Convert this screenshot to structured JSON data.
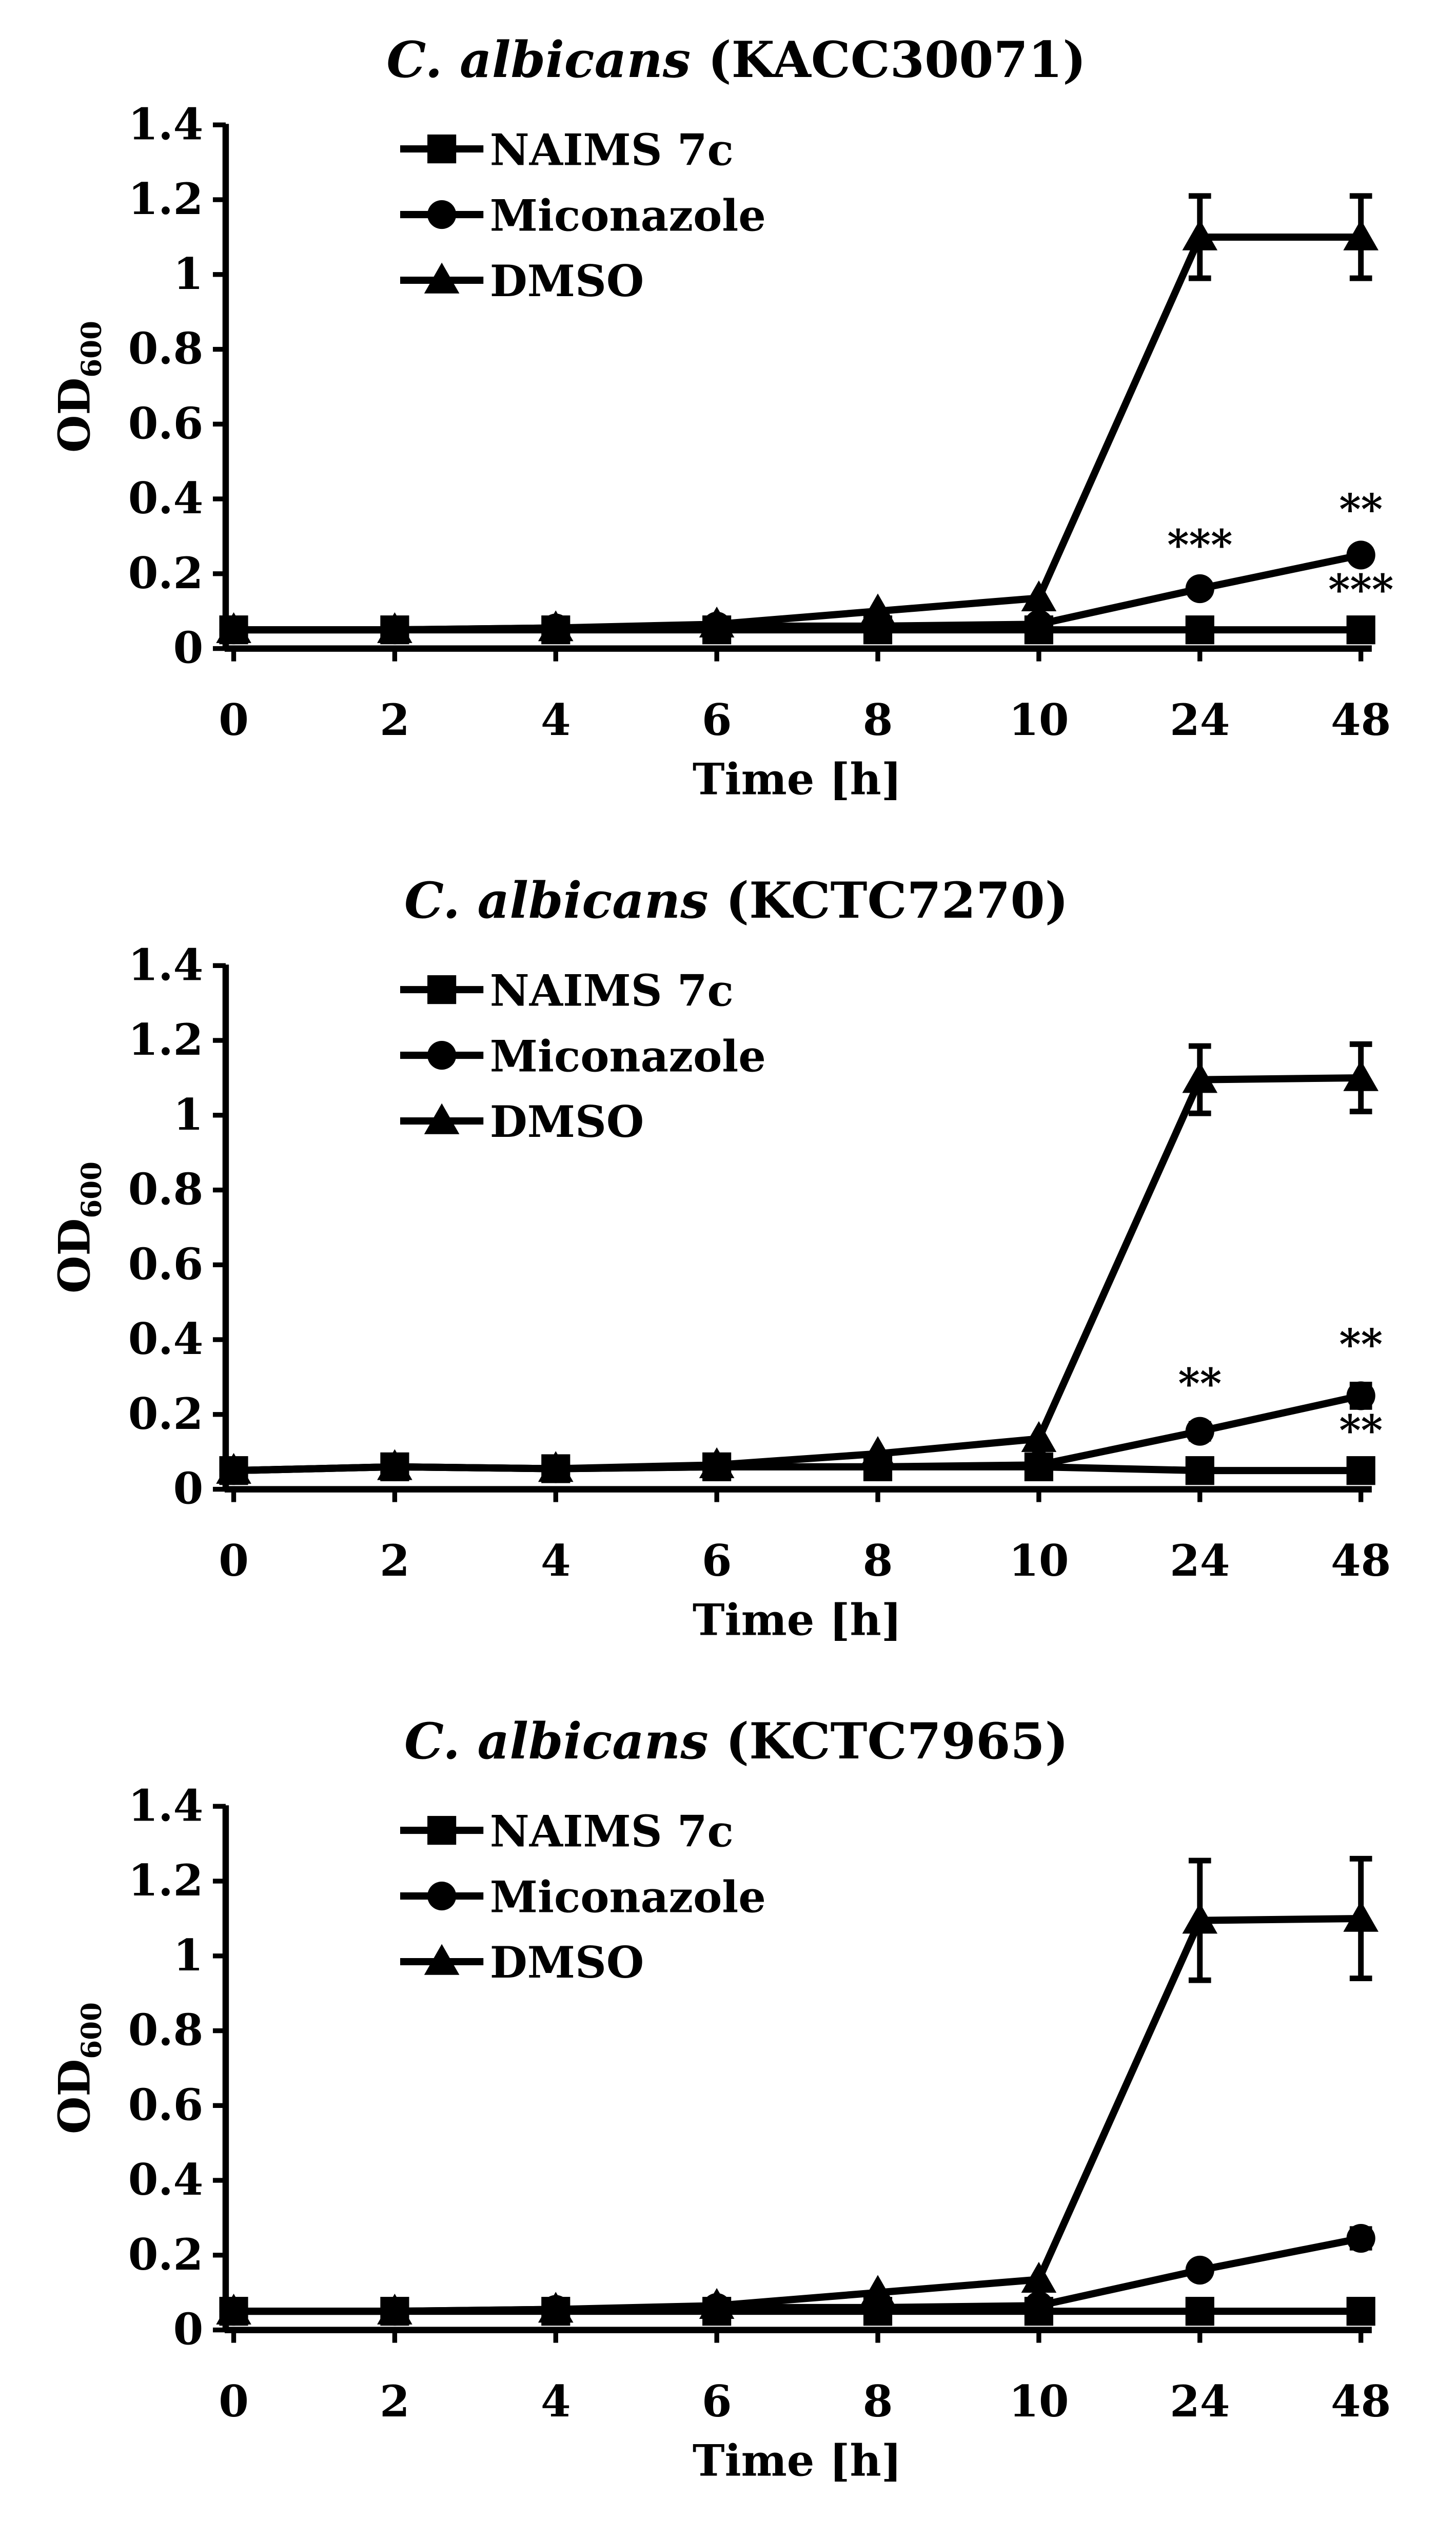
{
  "chart_data": [
    {
      "type": "line",
      "title": {
        "italic": "C. albicans",
        "rest": "(KACC30071)"
      },
      "xlabel": "Time [h]",
      "ylabel": {
        "base": "OD",
        "sub": "600"
      },
      "categories": [
        "0",
        "2",
        "4",
        "6",
        "8",
        "10",
        "24",
        "48"
      ],
      "ylim": [
        0,
        1.4
      ],
      "yticks": [
        "0",
        "0.2",
        "0.4",
        "0.6",
        "0.8",
        "1",
        "1.2",
        "1.4"
      ],
      "legend_position": "top-left",
      "series": [
        {
          "name": "NAIMS 7c",
          "marker": "square",
          "values": [
            0.05,
            0.05,
            0.05,
            0.05,
            0.05,
            0.05,
            0.05,
            0.05
          ],
          "errors": [
            0,
            0,
            0,
            0,
            0,
            0,
            0,
            0
          ],
          "annotations": [
            "",
            "",
            "",
            "",
            "",
            "",
            "",
            "***"
          ]
        },
        {
          "name": "Miconazole",
          "marker": "circle",
          "values": [
            0.05,
            0.05,
            0.055,
            0.06,
            0.06,
            0.065,
            0.16,
            0.25
          ],
          "errors": [
            0,
            0,
            0,
            0,
            0,
            0,
            0.01,
            0.015
          ],
          "annotations": [
            "",
            "",
            "",
            "",
            "",
            "",
            "***",
            "**"
          ]
        },
        {
          "name": "DMSO",
          "marker": "triangle",
          "values": [
            0.05,
            0.05,
            0.055,
            0.065,
            0.1,
            0.135,
            1.1,
            1.1
          ],
          "errors": [
            0,
            0,
            0,
            0,
            0,
            0,
            0.11,
            0.11
          ],
          "annotations": [
            "",
            "",
            "",
            "",
            "",
            "",
            "",
            ""
          ]
        }
      ]
    },
    {
      "type": "line",
      "title": {
        "italic": "C. albicans",
        "rest": "(KCTC7270)"
      },
      "xlabel": "Time [h]",
      "ylabel": {
        "base": "OD",
        "sub": "600"
      },
      "categories": [
        "0",
        "2",
        "4",
        "6",
        "8",
        "10",
        "24",
        "48"
      ],
      "ylim": [
        0,
        1.4
      ],
      "yticks": [
        "0",
        "0.2",
        "0.4",
        "0.6",
        "0.8",
        "1",
        "1.2",
        "1.4"
      ],
      "legend_position": "top-left",
      "series": [
        {
          "name": "NAIMS 7c",
          "marker": "square",
          "values": [
            0.05,
            0.06,
            0.055,
            0.06,
            0.06,
            0.06,
            0.05,
            0.05
          ],
          "errors": [
            0,
            0,
            0,
            0,
            0,
            0,
            0,
            0
          ],
          "annotations": [
            "",
            "",
            "",
            "",
            "",
            "",
            "",
            "**"
          ]
        },
        {
          "name": "Miconazole",
          "marker": "circle",
          "values": [
            0.05,
            0.06,
            0.055,
            0.06,
            0.06,
            0.065,
            0.155,
            0.25
          ],
          "errors": [
            0,
            0,
            0,
            0,
            0,
            0,
            0.02,
            0.03
          ],
          "annotations": [
            "",
            "",
            "",
            "",
            "",
            "",
            "**",
            "**"
          ]
        },
        {
          "name": "DMSO",
          "marker": "triangle",
          "values": [
            0.05,
            0.06,
            0.055,
            0.065,
            0.095,
            0.135,
            1.095,
            1.1
          ],
          "errors": [
            0,
            0,
            0,
            0,
            0,
            0,
            0.09,
            0.09
          ],
          "annotations": [
            "",
            "",
            "",
            "",
            "",
            "",
            "",
            ""
          ]
        }
      ]
    },
    {
      "type": "line",
      "title": {
        "italic": "C. albicans",
        "rest": "(KCTC7965)"
      },
      "xlabel": "Time [h]",
      "ylabel": {
        "base": "OD",
        "sub": "600"
      },
      "categories": [
        "0",
        "2",
        "4",
        "6",
        "8",
        "10",
        "24",
        "48"
      ],
      "ylim": [
        0,
        1.4
      ],
      "yticks": [
        "0",
        "0.2",
        "0.4",
        "0.6",
        "0.8",
        "1",
        "1.2",
        "1.4"
      ],
      "legend_position": "top-left",
      "series": [
        {
          "name": "NAIMS 7c",
          "marker": "square",
          "values": [
            0.05,
            0.05,
            0.05,
            0.05,
            0.05,
            0.05,
            0.05,
            0.05
          ],
          "errors": [
            0,
            0,
            0,
            0,
            0,
            0,
            0,
            0
          ],
          "annotations": [
            "",
            "",
            "",
            "",
            "",
            "",
            "",
            ""
          ]
        },
        {
          "name": "Miconazole",
          "marker": "circle",
          "values": [
            0.05,
            0.05,
            0.055,
            0.06,
            0.06,
            0.065,
            0.16,
            0.245
          ],
          "errors": [
            0,
            0,
            0,
            0,
            0,
            0,
            0.01,
            0.025
          ],
          "annotations": [
            "",
            "",
            "",
            "",
            "",
            "",
            "",
            ""
          ]
        },
        {
          "name": "DMSO",
          "marker": "triangle",
          "values": [
            0.05,
            0.05,
            0.055,
            0.065,
            0.1,
            0.135,
            1.095,
            1.1
          ],
          "errors": [
            0,
            0,
            0,
            0,
            0,
            0,
            0.16,
            0.16
          ],
          "annotations": [
            "",
            "",
            "",
            "",
            "",
            "",
            "",
            ""
          ]
        }
      ]
    }
  ]
}
